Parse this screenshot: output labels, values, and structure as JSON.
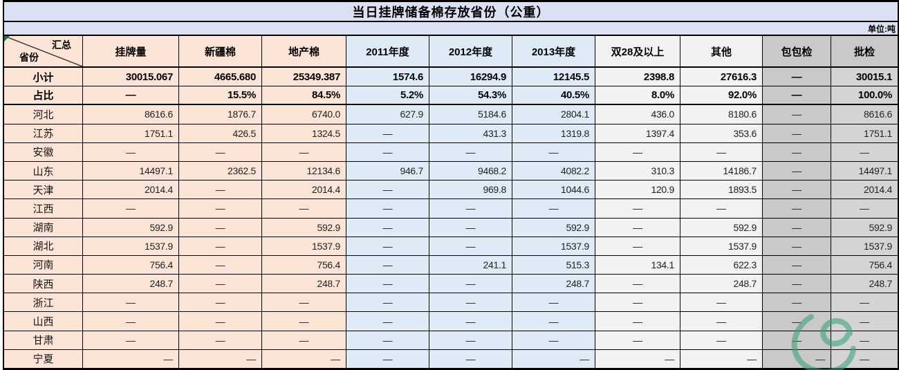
{
  "title": "当日挂牌储备棉存放省份（公重）",
  "unit_label": "单位:吨",
  "corner": {
    "top": "汇总",
    "bottom": "省份"
  },
  "columns": [
    "挂牌量",
    "新疆棉",
    "地产棉",
    "2011年度",
    "2012年度",
    "2013年度",
    "双28及以上",
    "其他",
    "包包检",
    "批检"
  ],
  "rows": [
    {
      "name": "小计",
      "bold": true,
      "values": [
        "30015.067",
        "4665.680",
        "25349.387",
        "1574.6",
        "16294.9",
        "12145.5",
        "2398.8",
        "27616.3",
        "—",
        "30015.1"
      ]
    },
    {
      "name": "占比",
      "bold": true,
      "values": [
        "—",
        "15.5%",
        "84.5%",
        "5.2%",
        "54.3%",
        "40.5%",
        "8.0%",
        "92.0%",
        "—",
        "100.0%"
      ]
    },
    {
      "name": "河北",
      "bold": false,
      "values": [
        "8616.6",
        "1876.7",
        "6740.0",
        "627.9",
        "5184.6",
        "2804.1",
        "436.0",
        "8180.6",
        "—",
        "8616.6"
      ]
    },
    {
      "name": "江苏",
      "bold": false,
      "values": [
        "1751.1",
        "426.5",
        "1324.5",
        "—",
        "431.3",
        "1319.8",
        "1397.4",
        "353.6",
        "—",
        "1751.1"
      ]
    },
    {
      "name": "安徽",
      "bold": false,
      "values": [
        "—",
        "—",
        "—",
        "—",
        "—",
        "—",
        "—",
        "—",
        "—",
        "—"
      ]
    },
    {
      "name": "山东",
      "bold": false,
      "values": [
        "14497.1",
        "2362.5",
        "12134.6",
        "946.7",
        "9468.2",
        "4082.2",
        "310.3",
        "14186.7",
        "—",
        "14497.1"
      ]
    },
    {
      "name": "天津",
      "bold": false,
      "values": [
        "2014.4",
        "—",
        "2014.4",
        "—",
        "969.8",
        "1044.6",
        "120.9",
        "1893.5",
        "—",
        "2014.4"
      ]
    },
    {
      "name": "江西",
      "bold": false,
      "values": [
        "—",
        "—",
        "—",
        "—",
        "—",
        "—",
        "—",
        "—",
        "—",
        "—"
      ]
    },
    {
      "name": "湖南",
      "bold": false,
      "values": [
        "592.9",
        "—",
        "592.9",
        "—",
        "—",
        "592.9",
        "—",
        "592.9",
        "—",
        "592.9"
      ]
    },
    {
      "name": "湖北",
      "bold": false,
      "values": [
        "1537.9",
        "—",
        "1537.9",
        "—",
        "—",
        "1537.9",
        "—",
        "1537.9",
        "—",
        "1537.9"
      ]
    },
    {
      "name": "河南",
      "bold": false,
      "values": [
        "756.4",
        "—",
        "756.4",
        "—",
        "241.1",
        "515.3",
        "134.1",
        "622.3",
        "—",
        "756.4"
      ]
    },
    {
      "name": "陕西",
      "bold": false,
      "values": [
        "248.7",
        "—",
        "248.7",
        "—",
        "—",
        "248.7",
        "—",
        "248.7",
        "—",
        "248.7"
      ]
    },
    {
      "name": "浙江",
      "bold": false,
      "values": [
        "—",
        "—",
        "—",
        "—",
        "—",
        "—",
        "—",
        "—",
        "—",
        "—"
      ]
    },
    {
      "name": "山西",
      "bold": false,
      "values": [
        "—",
        "—",
        "—",
        "—",
        "—",
        "—",
        "—",
        "—",
        "—",
        "—"
      ]
    },
    {
      "name": "甘肃",
      "bold": false,
      "values": [
        "—",
        "—",
        "—",
        "—",
        "—",
        "—",
        "—",
        "—",
        "—",
        "—"
      ]
    },
    {
      "name": "宁夏",
      "bold": false,
      "values": [
        "—",
        "—",
        "—",
        "—",
        "—",
        "—",
        "—",
        "—",
        "—",
        "—"
      ]
    }
  ],
  "colors": {
    "header_band": "#D9E1F2",
    "peach_group": "#FCE4D6",
    "blue_group": "#DEEBF7",
    "light_gray_group": "#F2F2F2",
    "baojian_gray": "#C9C9C9",
    "pijian_gray": "#D4D4D4",
    "logo_green": "#3FA477"
  }
}
